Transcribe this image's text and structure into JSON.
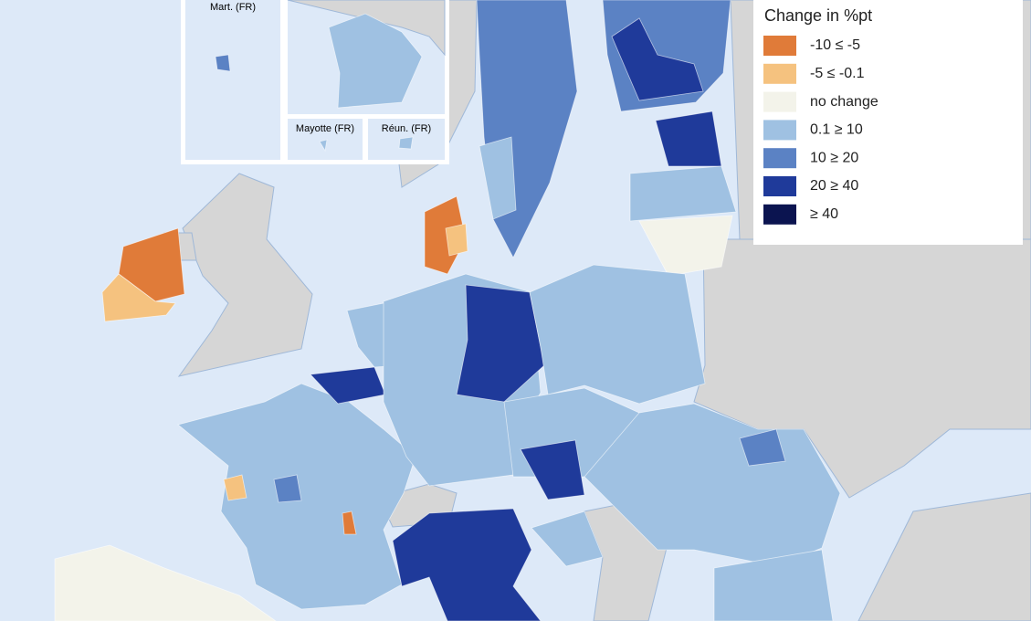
{
  "legend": {
    "title": "Change in %pt",
    "items": [
      {
        "label": "-10 ≤ -5",
        "color": "#e07b39"
      },
      {
        "label": "-5 ≤ -0.1",
        "color": "#f5c27f"
      },
      {
        "label": "no change",
        "color": "#f3f3ea"
      },
      {
        "label": "0.1 ≥ 10",
        "color": "#9fc1e2"
      },
      {
        "label": "10 ≥ 20",
        "color": "#5b82c4"
      },
      {
        "label": "20 ≥ 40",
        "color": "#1f3a9a"
      },
      {
        "label": "≥ 40",
        "color": "#0b1450"
      }
    ]
  },
  "insets": [
    "Mart. (FR)",
    "Mayotte (FR)",
    "Réun. (FR)"
  ]
}
